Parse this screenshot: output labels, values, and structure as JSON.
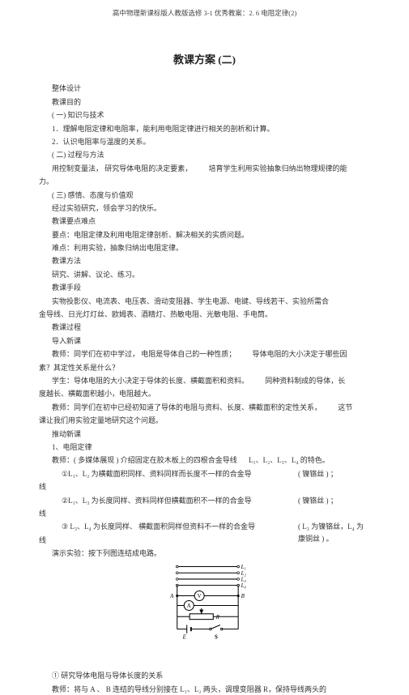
{
  "header": "高中物理新课标版人教版选修 3-1 优秀教案：2. 6 电阻定律(2)",
  "title": "教课方案 (二)",
  "lines": {
    "l1": "整体设计",
    "l2": "教课目的",
    "l3": "( 一) 知识与技术",
    "l4": "1．理解电阻定律和电阻率，能利用电阻定律进行相关的剖析和计算。",
    "l5": "2．认识电阻率与温度的关系。",
    "l6": "( 二) 过程与方法",
    "l7a": "用控制变量法，   研究导体电阻的决定要素，",
    "l7b": "培育学生利用实验抽象归纳出物理规律的能",
    "l8": "力。",
    "l9": "( 三) 感情、态度与价值观",
    "l10": "经过实验研究，领会学习的快乐。",
    "l11": "教课要点难点",
    "l12": "要点：电阻定律及利用电阻定律剖析、解决相关的实质问题。",
    "l13": "难点：利用实验，抽象归纳出电阻定律。",
    "l14": "教课方法",
    "l15": "研究、讲解、议论、练习。",
    "l16": "教课手段",
    "l17a": "实物投影仪、电流表、电压表、滑动变阻器、学生电源、电键、导线若干、实验所需合",
    "l18": "金导线、日光灯灯丝、欧姆表、酒精灯、热敏电阻、光敏电阻、手电筒。",
    "l19": "教课过程",
    "l20": "导入新课",
    "l21a": "教师：同学们在初中学过，    电阻是导体自己的一种性质；",
    "l21b": "导体电阻的大小决定于哪些因",
    "l22": "素？其定性关系是什么？",
    "l23a": "学生：导体电阻的大小决定于导体的长度、横截面积和资料。",
    "l23b": "同种资料制成的导体，长",
    "l24": "度越长、横截面积越小，电阻越大。",
    "l25a": "教师：同学们在初中已经初知道了导体的电阻与资料、长度、横截面积的定性关系，",
    "l25b": "这节",
    "l26": "课让我们用实验定量地研究这个问题。",
    "l27": "推动新课",
    "l28": "1、电阻定律",
    "l29a": "教师：( 多媒体展现 ) 介绍固定在胶木板上的四根合金导线",
    "l29b": "L₁、L₂、L₃、L₄ 的特色。",
    "l30a": "①L₁、L₂ 为横截面积同样、资料同样而长度不一样的合金导",
    "l30b": "( 镍铬丝 ) ；",
    "l31": "线",
    "l32a": "②L₁、L₃ 为长度同样、资料同样但横截面积不一样的合金导",
    "l32b": "( 镍铬丝 ) ；",
    "l33": "线",
    "l34a": "③ L₃、L₄ 为长度同样、 横截面积同样但资料不一样的合金导",
    "l34b": "( L₃ 为镍铬丝，L₄ 为康铜丝 ) 。",
    "l35": "线",
    "l36": "演示实验：按下列图连结成电路。",
    "l37": "① 研究导体电阻与导体长度的关系",
    "l38": "教师：将与    A 、 B 连结的导线分别接在    L₁、L₂ 两头，调理变阻器   R，保持导线两头的"
  },
  "circuit": {
    "labels": {
      "A": "A",
      "B": "B",
      "E": "E",
      "S": "S",
      "L1": "L₁",
      "L2": "L₂",
      "L3": "L₃",
      "L4": "L₄",
      "Ameter": "A",
      "Vmeter": "V",
      "R": "R"
    },
    "stroke": "#000000",
    "stroke_width": 1.2,
    "font_size": 8
  }
}
